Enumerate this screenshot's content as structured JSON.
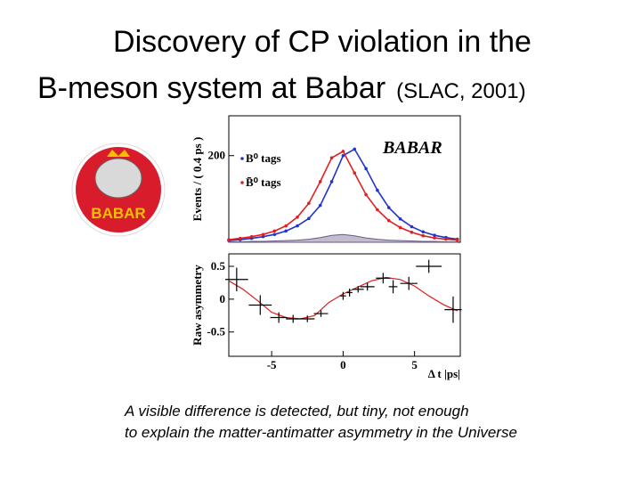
{
  "slide": {
    "title_line1": "Discovery of CP violation in the",
    "title_line2": "B-meson system at Babar",
    "title_note": "(SLAC, 2001)",
    "caption_line1": "A visible difference is detected, but tiny, not enough",
    "caption_line2": "to explain the matter-antimatter asymmetry in the Universe"
  },
  "logo": {
    "text": "BABAR"
  },
  "chart_data": [
    {
      "type": "line",
      "ylabel": "Events / ( 0.4 ps )",
      "annotation": "BABAR",
      "x": [
        -8,
        -7.2,
        -6.4,
        -5.6,
        -4.8,
        -4,
        -3.2,
        -2.4,
        -1.6,
        -0.8,
        0,
        0.8,
        1.6,
        2.4,
        3.2,
        4,
        4.8,
        5.6,
        6.4,
        7.2,
        8
      ],
      "xlim": [
        -8,
        8.2
      ],
      "ylim": [
        0,
        292
      ],
      "yticks": [
        200
      ],
      "series": [
        {
          "name": "B⁰ tags",
          "color": "#2233cc",
          "values": [
            4,
            6,
            9,
            13,
            18,
            26,
            38,
            55,
            85,
            140,
            200,
            215,
            170,
            120,
            80,
            54,
            36,
            24,
            16,
            11,
            7
          ]
        },
        {
          "name": "B̄⁰ tags",
          "color": "#e02020",
          "values": [
            6,
            9,
            13,
            18,
            26,
            38,
            58,
            90,
            140,
            195,
            210,
            160,
            110,
            75,
            50,
            34,
            23,
            15,
            10,
            7,
            5
          ]
        }
      ],
      "background": {
        "color": "#a8a0b8",
        "values": [
          1,
          1,
          2,
          2,
          3,
          4,
          5,
          7,
          11,
          16,
          18,
          15,
          10,
          7,
          5,
          4,
          3,
          2,
          2,
          1,
          1
        ]
      }
    },
    {
      "type": "errorbar",
      "ylabel": "Raw asymmetry",
      "xlabel": "Δ t |ps|",
      "xlim": [
        -8,
        8.2
      ],
      "ylim": [
        -0.87,
        0.69
      ],
      "xticks": [
        -5,
        0,
        5
      ],
      "yticks": [
        0.5,
        0,
        -0.5
      ],
      "color": "#000000",
      "x": [
        -7.45,
        -5.8,
        -4.5,
        -3.5,
        -2.5,
        -1.55,
        0,
        0.45,
        1.05,
        1.7,
        2.8,
        3.5,
        4.6,
        6,
        7.7
      ],
      "values": [
        0.3,
        -0.09,
        -0.28,
        -0.3,
        -0.3,
        -0.22,
        0.05,
        0.1,
        0.15,
        0.19,
        0.32,
        0.19,
        0.24,
        0.5,
        -0.16
      ],
      "x_errors": [
        0.8,
        0.8,
        0.6,
        0.5,
        0.5,
        0.5,
        0.2,
        0.2,
        0.4,
        0.5,
        0.5,
        0.3,
        0.6,
        0.9,
        0.6
      ],
      "y_errors": [
        0.18,
        0.15,
        0.08,
        0.06,
        0.05,
        0.05,
        0.06,
        0.06,
        0.05,
        0.06,
        0.08,
        0.1,
        0.1,
        0.1,
        0.2
      ],
      "fit": {
        "color": "#e02020",
        "x": [
          -8,
          -7,
          -6,
          -5,
          -4,
          -3,
          -2,
          -1,
          0,
          1,
          2,
          3,
          4,
          5,
          6,
          7,
          8
        ],
        "values": [
          0.28,
          0.15,
          -0.02,
          -0.2,
          -0.28,
          -0.3,
          -0.25,
          -0.05,
          0.08,
          0.18,
          0.28,
          0.33,
          0.3,
          0.2,
          0.05,
          -0.08,
          -0.18
        ]
      }
    }
  ]
}
